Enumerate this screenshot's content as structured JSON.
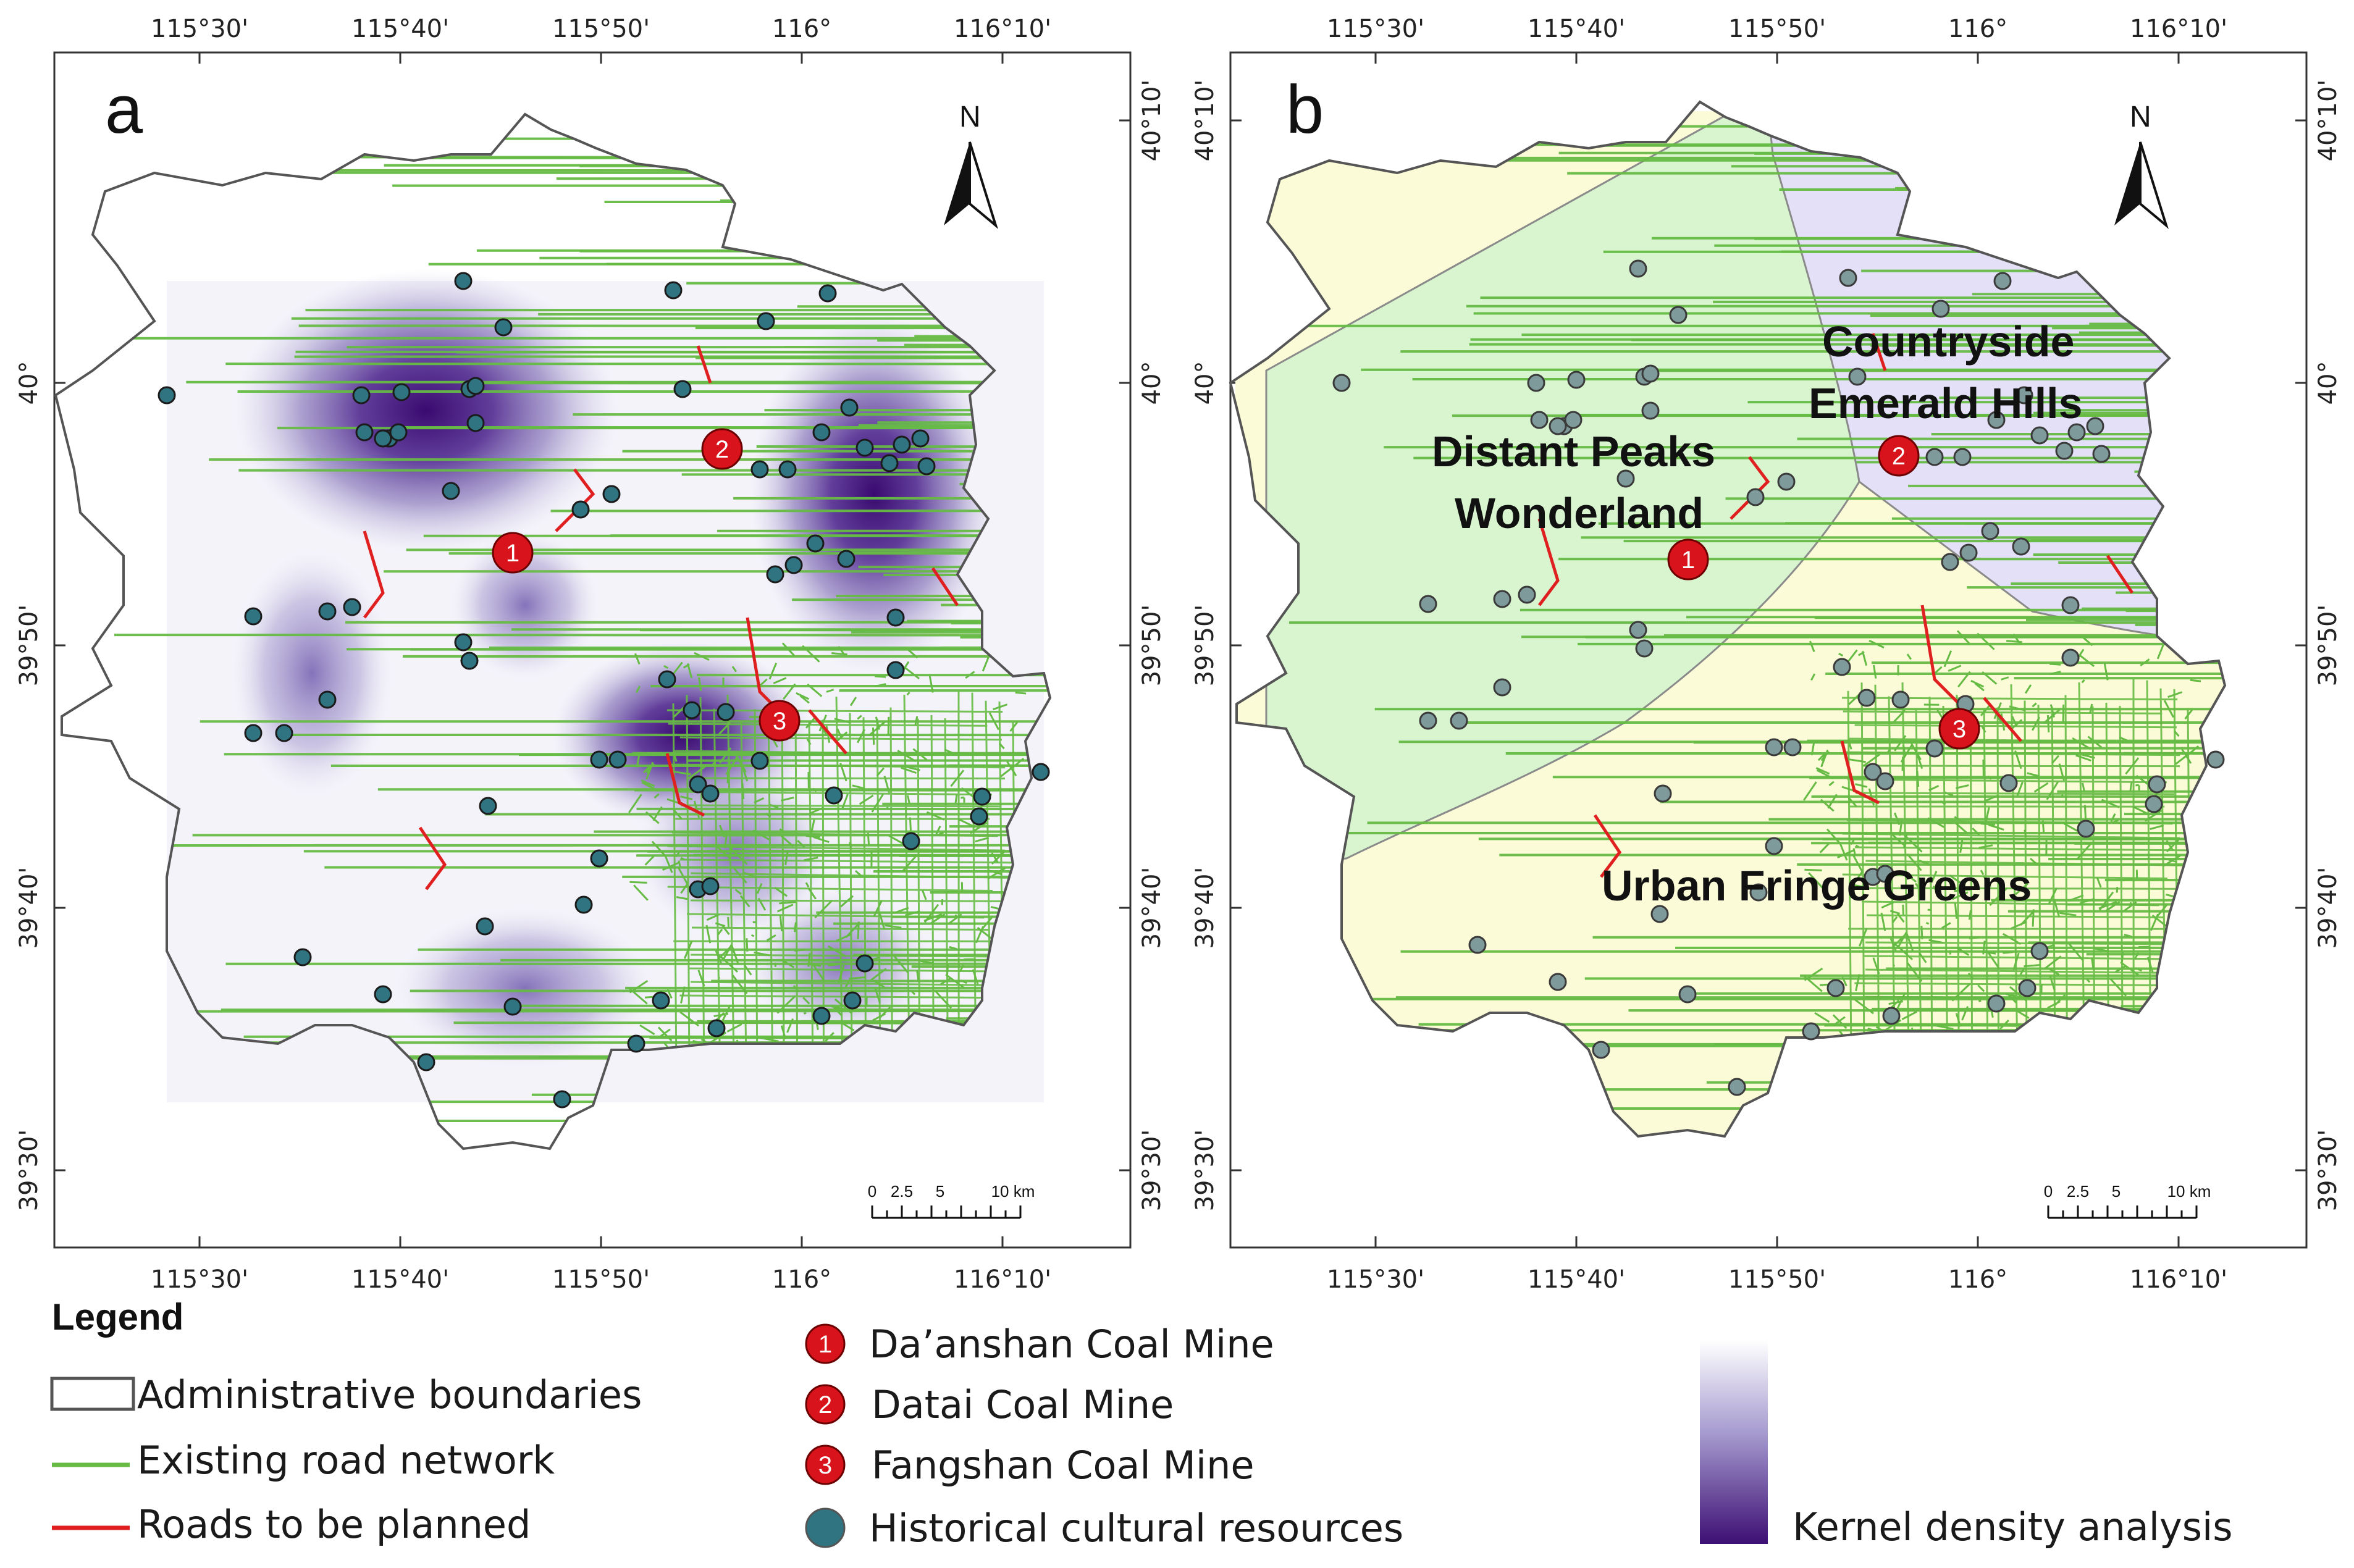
{
  "panel_a": {
    "letter": "a",
    "north_label": "N",
    "top_ticks": [
      "115°30'",
      "115°40'",
      "115°50'",
      "116°",
      "116°10'"
    ],
    "bottom_ticks": [
      "115°30'",
      "115°40'",
      "115°50'",
      "116°",
      "116°10'"
    ],
    "left_ticks": [
      "40°",
      "39°50'",
      "39°40'",
      "39°30'"
    ],
    "right_ticks": [
      "40°10'",
      "40°",
      "39°50'",
      "39°40'",
      "39°30'"
    ],
    "scale_labels": [
      "0",
      "2.5",
      "5",
      "10 km"
    ],
    "mine_numbers": [
      "1",
      "2",
      "3"
    ]
  },
  "panel_b": {
    "letter": "b",
    "north_label": "N",
    "top_ticks": [
      "115°30'",
      "115°40'",
      "115°50'",
      "116°",
      "116°10'"
    ],
    "bottom_ticks": [
      "115°30'",
      "115°40'",
      "115°50'",
      "116°",
      "116°10'"
    ],
    "left_ticks": [
      "40°10'",
      "40°",
      "39°50'",
      "39°40'",
      "39°30'"
    ],
    "right_ticks": [
      "40°10'",
      "40°",
      "39°50'",
      "39°40'",
      "39°30'"
    ],
    "scale_labels": [
      "0",
      "2.5",
      "5",
      "10 km"
    ],
    "mine_numbers": [
      "1",
      "2",
      "3"
    ],
    "zones": {
      "distant_peaks_line1": "Distant Peaks",
      "distant_peaks_line2": "Wonderland",
      "countryside_line1": "Countryside",
      "countryside_line2": "Emerald Hills",
      "urban_fringe": "Urban Fringe Greens"
    }
  },
  "legend": {
    "title": "Legend",
    "admin_boundaries": "Administrative boundaries",
    "existing_roads": "Existing road network",
    "planned_roads": "Roads to be planned",
    "mine1_num": "1",
    "mine1": "Da’anshan Coal Mine",
    "mine2_num": "2",
    "mine2": "Datai Coal Mine",
    "mine3_num": "3",
    "mine3": "Fangshan Coal Mine",
    "heritage": "Historical cultural resources",
    "kde": "Kernel density analysis"
  },
  "colors": {
    "road": "#66bb44",
    "planned_road": "#e02020",
    "boundary": "#555555",
    "mine": "#d8131b",
    "heritage": "#2f7480",
    "kde_dark": "#3d0f73",
    "zone_distant": "#d8f5cf",
    "zone_countryside": "#e3e0f7",
    "zone_urban": "#fbfbd8"
  }
}
